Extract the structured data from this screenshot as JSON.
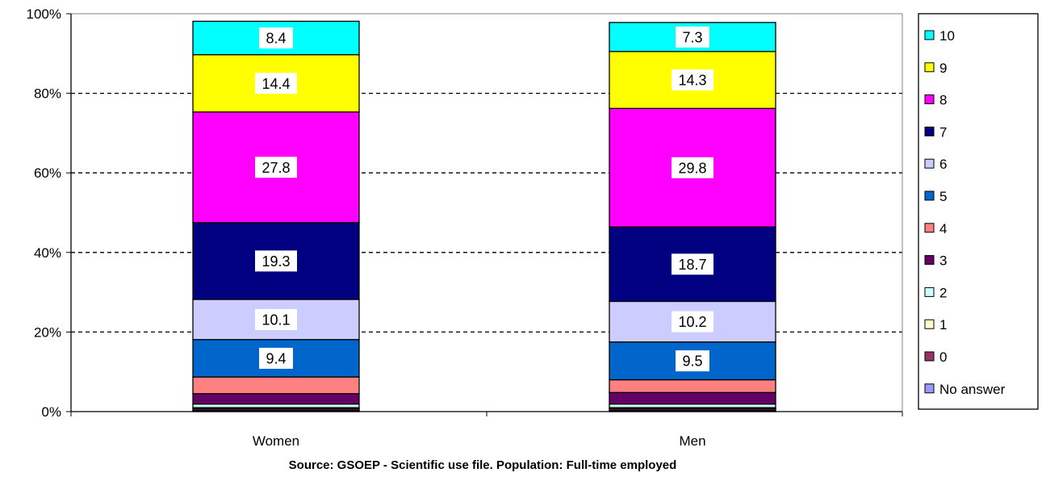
{
  "chart_data": {
    "type": "bar",
    "stacked": true,
    "percent_stacked": true,
    "categories": [
      "Women",
      "Men"
    ],
    "ylim": [
      0,
      100
    ],
    "y_ticks": [
      "0%",
      "20%",
      "40%",
      "60%",
      "80%",
      "100%"
    ],
    "grid": "dashed horizontal",
    "legend_position": "right",
    "series": [
      {
        "name": "No answer",
        "color": "#9999ff",
        "values": [
          0.3,
          0.3
        ]
      },
      {
        "name": "0",
        "color": "#993366",
        "values": [
          0.4,
          0.4
        ]
      },
      {
        "name": "1",
        "color": "#ffffcc",
        "values": [
          0.3,
          0.3
        ]
      },
      {
        "name": "2",
        "color": "#ccffff",
        "values": [
          0.9,
          0.9
        ]
      },
      {
        "name": "3",
        "color": "#660066",
        "values": [
          2.6,
          2.9
        ]
      },
      {
        "name": "4",
        "color": "#ff8080",
        "values": [
          4.2,
          3.2
        ]
      },
      {
        "name": "5",
        "color": "#0066cc",
        "values": [
          9.4,
          9.5
        ]
      },
      {
        "name": "6",
        "color": "#ccccff",
        "values": [
          10.1,
          10.2
        ]
      },
      {
        "name": "7",
        "color": "#000080",
        "values": [
          19.3,
          18.7
        ]
      },
      {
        "name": "8",
        "color": "#ff00ff",
        "values": [
          27.8,
          29.8
        ]
      },
      {
        "name": "9",
        "color": "#ffff00",
        "values": [
          14.4,
          14.3
        ]
      },
      {
        "name": "10",
        "color": "#00ffff",
        "values": [
          8.4,
          7.3
        ]
      }
    ],
    "data_labels": [
      {
        "category": "Women",
        "labels": {
          "5": "9.4",
          "6": "10.1",
          "7": "19.3",
          "8": "27.8",
          "9": "14.4",
          "10": "8.4"
        }
      },
      {
        "category": "Men",
        "labels": {
          "5": "9.5",
          "6": "10.2",
          "7": "18.7",
          "8": "29.8",
          "9": "14.3",
          "10": "7.3"
        }
      }
    ],
    "legend_order": [
      "10",
      "9",
      "8",
      "7",
      "6",
      "5",
      "4",
      "3",
      "2",
      "1",
      "0",
      "No answer"
    ]
  },
  "footer": {
    "source": "Source: GSOEP - Scientific use file. Population: Full-time employed"
  }
}
